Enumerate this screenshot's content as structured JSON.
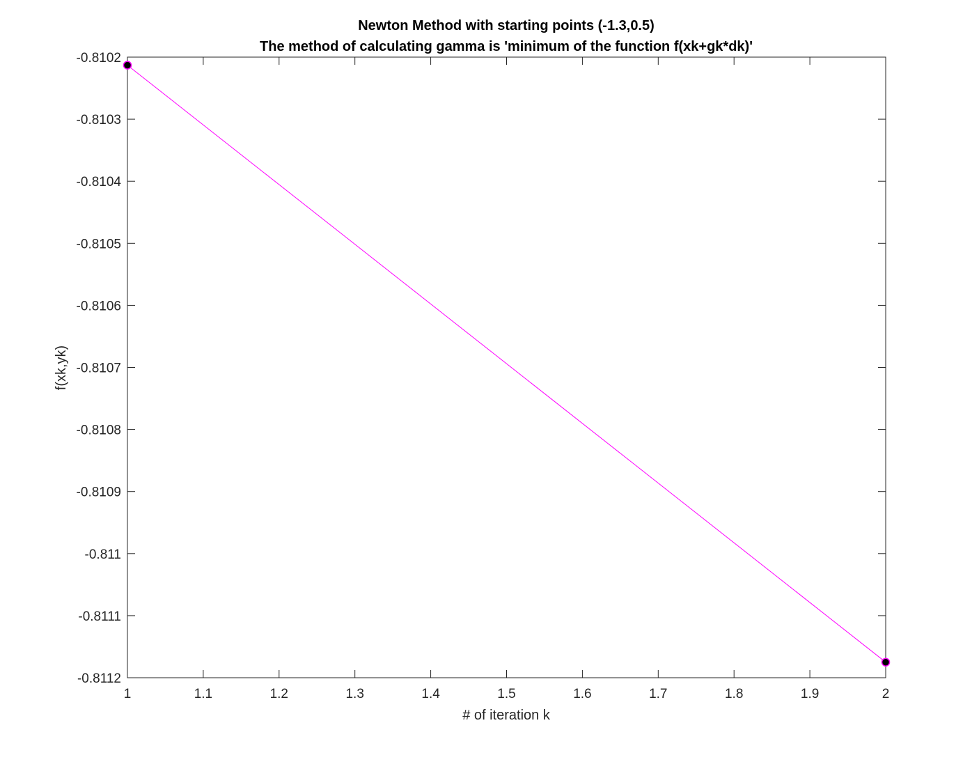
{
  "chart_data": {
    "type": "line",
    "title_lines": [
      "Newton Method with starting points (-1.3,0.5)",
      "The method of calculating gamma is  'minimum of the function f(xk+gk*dk)'"
    ],
    "xlabel": "# of iteration k",
    "ylabel": "f(xk,yk)",
    "xlim": [
      1,
      2
    ],
    "ylim": [
      -0.8112,
      -0.8102
    ],
    "x_ticks": [
      1,
      1.1,
      1.2,
      1.3,
      1.4,
      1.5,
      1.6,
      1.7,
      1.8,
      1.9,
      2
    ],
    "x_tick_labels": [
      "1",
      "1.1",
      "1.2",
      "1.3",
      "1.4",
      "1.5",
      "1.6",
      "1.7",
      "1.8",
      "1.9",
      "2"
    ],
    "y_ticks": [
      -0.8112,
      -0.8111,
      -0.811,
      -0.8109,
      -0.8108,
      -0.8107,
      -0.8106,
      -0.8105,
      -0.8104,
      -0.8103,
      -0.8102
    ],
    "y_tick_labels": [
      "-0.8112",
      "-0.8111",
      "-0.811",
      "-0.8109",
      "-0.8108",
      "-0.8107",
      "-0.8106",
      "-0.8105",
      "-0.8104",
      "-0.8103",
      "-0.8102"
    ],
    "grid": false,
    "series": [
      {
        "x": [
          1,
          2
        ],
        "y": [
          -0.810213,
          -0.811175
        ],
        "line_color": "#ff00ff",
        "marker_face_color": "#000000",
        "marker_edge_color": "#ff00ff"
      }
    ]
  }
}
